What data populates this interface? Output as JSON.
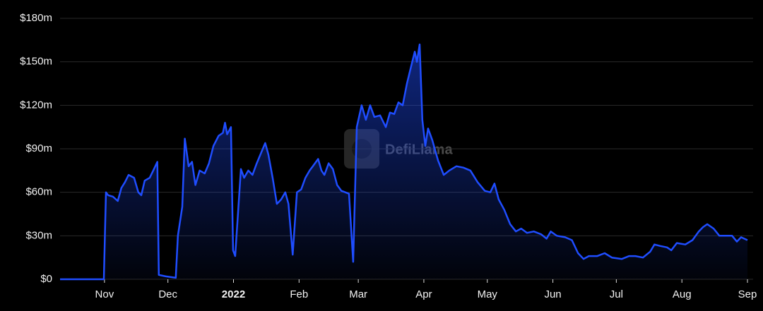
{
  "chart_data": {
    "type": "area",
    "watermark": "DefiLlama",
    "x": [
      -21,
      -0.3,
      0.7,
      1.7,
      4,
      6.3,
      8,
      9.7,
      11.4,
      14,
      16,
      17.4,
      19,
      21.4,
      23.4,
      25,
      25.7,
      29,
      33.7,
      34.7,
      36.8,
      38,
      39.8,
      41.4,
      43,
      45,
      47.4,
      49.4,
      51.5,
      54,
      56,
      57,
      58,
      59.8,
      60.8,
      61.8,
      64.5,
      66,
      68,
      70,
      72,
      74,
      76,
      77.5,
      79.5,
      81.5,
      83.5,
      85.5,
      87,
      89,
      91,
      93,
      95,
      97,
      98.5,
      101,
      102.6,
      104,
      106,
      108,
      110,
      112,
      115.6,
      117.6,
      119.3,
      121.6,
      123.6,
      125.6,
      127.6,
      130.3,
      133,
      135,
      137,
      139,
      141,
      143,
      145,
      146.7,
      147.7,
      149,
      150.3,
      151.7,
      153,
      155,
      157.7,
      160.4,
      163,
      166.4,
      169.7,
      173,
      176.4,
      179.8,
      182.4,
      184.4,
      186.4,
      189,
      191.8,
      194.5,
      197,
      199.8,
      203,
      206.5,
      209,
      211,
      213.8,
      217.8,
      221,
      223.9,
      226.5,
      229,
      233,
      236.5,
      239.9,
      244.6,
      248,
      251,
      254.6,
      258,
      260,
      262.6,
      266,
      268,
      270.6,
      274.6,
      278,
      281,
      283,
      285,
      288,
      290.7,
      294,
      296.7,
      299,
      301,
      304
    ],
    "values": [
      0,
      0,
      60,
      58,
      57,
      54,
      63,
      67,
      72,
      70,
      60,
      58,
      68,
      70,
      76,
      81,
      3,
      2,
      1,
      30,
      50,
      97,
      78,
      81,
      65,
      75,
      73,
      80,
      92,
      99,
      101,
      108,
      100,
      105,
      20,
      16,
      76,
      70,
      75,
      72,
      80,
      87,
      94,
      86,
      70,
      52,
      55,
      60,
      52,
      17,
      60,
      62,
      70,
      75,
      78,
      83,
      75,
      72,
      80,
      76,
      65,
      61,
      59,
      12,
      105,
      120,
      110,
      120,
      112,
      113,
      105,
      115,
      114,
      122,
      120,
      135,
      147,
      157,
      150,
      162,
      110,
      92,
      104,
      96,
      82,
      72,
      75,
      78,
      77,
      75,
      67,
      61,
      60,
      66,
      55,
      48,
      38,
      33,
      35,
      32,
      33,
      31,
      28,
      33,
      30,
      29,
      27,
      18,
      14,
      16,
      16,
      18,
      15,
      14,
      16,
      16,
      15,
      19,
      24,
      23,
      22,
      20,
      25,
      24,
      27,
      33,
      36,
      38,
      35,
      30,
      30,
      30,
      26,
      29,
      27
    ],
    "color": "#1f4dff",
    "xlim": [
      -21,
      305
    ],
    "xticks": [
      {
        "value": 0,
        "label": "Nov"
      },
      {
        "value": 30,
        "label": "Dec"
      },
      {
        "value": 61,
        "label": "2022"
      },
      {
        "value": 92,
        "label": "Feb"
      },
      {
        "value": 120,
        "label": "Mar"
      },
      {
        "value": 151,
        "label": "Apr"
      },
      {
        "value": 181,
        "label": "May"
      },
      {
        "value": 212,
        "label": "Jun"
      },
      {
        "value": 242,
        "label": "Jul"
      },
      {
        "value": 273,
        "label": "Aug"
      },
      {
        "value": 304,
        "label": "Sep"
      }
    ],
    "ylim": [
      0,
      180
    ],
    "yticks": [
      {
        "value": 0,
        "label": "$0"
      },
      {
        "value": 30,
        "label": "$30m"
      },
      {
        "value": 60,
        "label": "$60m"
      },
      {
        "value": 90,
        "label": "$90m"
      },
      {
        "value": 120,
        "label": "$120m"
      },
      {
        "value": 150,
        "label": "$150m"
      },
      {
        "value": 180,
        "label": "$180m"
      }
    ],
    "grid": true
  }
}
